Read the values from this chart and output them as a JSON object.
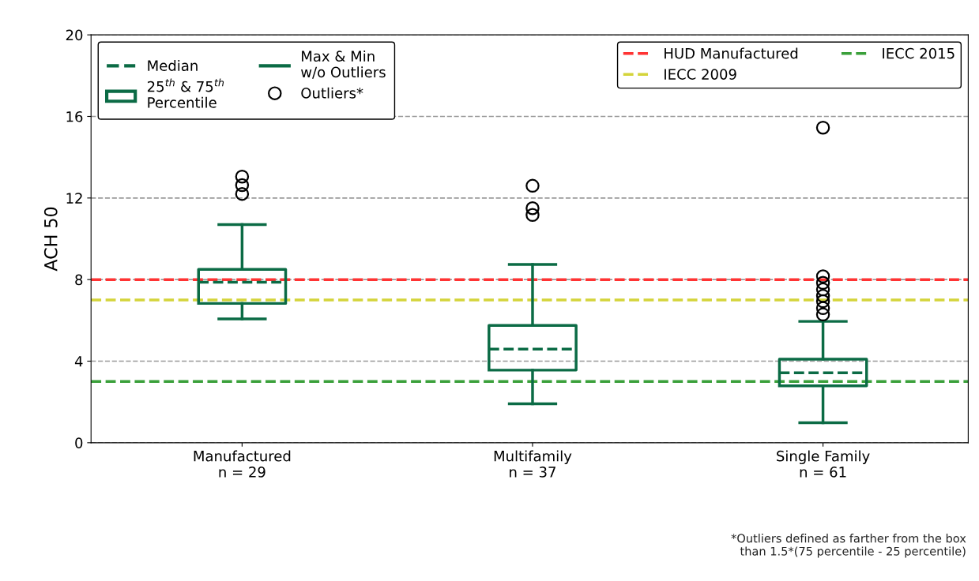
{
  "chart_data": {
    "type": "box",
    "categories": [
      "Manufactured\nn = 29",
      "Multifamily\nn = 37",
      "Single Family\nn = 61"
    ],
    "ylabel": "ACH 50",
    "ylim": [
      0,
      20
    ],
    "yticks": [
      0,
      4,
      8,
      12,
      16,
      20
    ],
    "grid": "y",
    "legend": "top right",
    "series": [
      {
        "color": "#0b6b45",
        "boxes": [
          {
            "low": 6.07,
            "q1": 6.83,
            "median": 7.87,
            "q3": 8.5,
            "high": 10.7,
            "outliers": [
              13.05,
              12.63,
              12.2
            ]
          },
          {
            "low": 1.91,
            "q1": 3.56,
            "median": 4.59,
            "q3": 5.75,
            "high": 8.74,
            "outliers": [
              12.6,
              11.5,
              11.17
            ]
          },
          {
            "low": 0.98,
            "q1": 2.79,
            "median": 3.43,
            "q3": 4.1,
            "high": 5.95,
            "outliers": [
              15.45,
              8.16,
              7.84,
              7.52,
              7.2,
              6.94,
              6.6,
              6.29
            ]
          }
        ]
      }
    ],
    "ref_lines": [
      {
        "axis": "y",
        "value": 8,
        "label": "HUD Manufactured",
        "color": "#ff3333",
        "line_style": "dashed"
      },
      {
        "axis": "y",
        "value": 7,
        "label": "IECC 2009",
        "color": "#d4d43a",
        "line_style": "dashed"
      },
      {
        "axis": "y",
        "value": 3,
        "label": "IECC 2015",
        "color": "#3aa03a",
        "line_style": "dashed"
      }
    ],
    "annotations": [
      "Median",
      "25$^{th}$ & 75$^{th}$\nPercentile",
      "Max & Min\nw/o Outliers",
      "Outliers*",
      "*Outliers defined as farther from the box\nthan 1.5*(75 percentile - 25 percentile)"
    ]
  }
}
